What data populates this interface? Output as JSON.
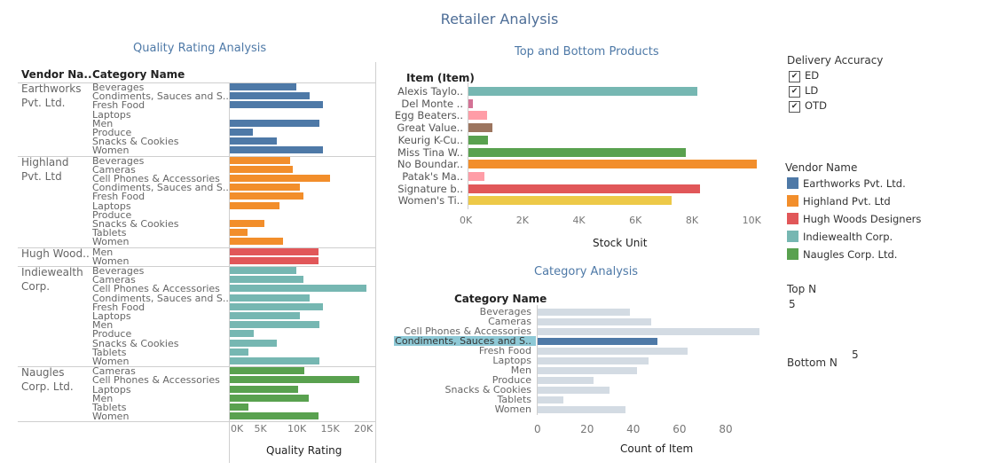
{
  "dashboard_title": "Retailer Analysis",
  "colors": {
    "Earthworks Pvt. Ltd.": "#4e79a7",
    "Highland Pvt. Ltd": "#f28e2b",
    "Hugh Woods Designers": "#e15759",
    "Indiewealth Corp.": "#76b7b2",
    "Naugles Corp. Ltd.": "#59a14f",
    "muted": "#d3dbe3",
    "highlight": "#4e79a7"
  },
  "quality": {
    "title": "Quality Rating Analysis",
    "vendor_header": "Vendor Na..",
    "category_header": "Category Name",
    "axis_title": "Quality Rating",
    "ticks": [
      "0K",
      "5K",
      "10K",
      "15K",
      "20K"
    ],
    "vendors": [
      {
        "label": "Earthworks Pvt. Ltd.",
        "lines": [
          "Earthworks",
          "Pvt. Ltd."
        ],
        "key": "Earthworks Pvt. Ltd.",
        "rows": [
          [
            "Beverages",
            10000
          ],
          [
            "Condiments, Sauces and S..",
            12000
          ],
          [
            "Fresh Food",
            14000
          ],
          [
            "Laptops",
            0
          ],
          [
            "Men",
            13500
          ],
          [
            "Produce",
            3500
          ],
          [
            "Snacks & Cookies",
            7000
          ],
          [
            "Women",
            14000
          ]
        ]
      },
      {
        "label": "Highland Pvt. Ltd",
        "lines": [
          "Highland",
          "Pvt. Ltd"
        ],
        "key": "Highland Pvt. Ltd",
        "rows": [
          [
            "Beverages",
            9000
          ],
          [
            "Cameras",
            9500
          ],
          [
            "Cell Phones & Accessories",
            15000
          ],
          [
            "Condiments, Sauces and S..",
            10500
          ],
          [
            "Fresh Food",
            11000
          ],
          [
            "Laptops",
            7500
          ],
          [
            "Produce",
            0
          ],
          [
            "Snacks & Cookies",
            5200
          ],
          [
            "Tablets",
            2700
          ],
          [
            "Women",
            8000
          ]
        ]
      },
      {
        "label": "Hugh Wood..",
        "lines": [
          "Hugh Wood.."
        ],
        "key": "Hugh Woods Designers",
        "rows": [
          [
            "Men",
            13300
          ],
          [
            "Women",
            13300
          ]
        ]
      },
      {
        "label": "Indiewealth Corp.",
        "lines": [
          "Indiewealth",
          "Corp."
        ],
        "key": "Indiewealth Corp.",
        "rows": [
          [
            "Beverages",
            10000
          ],
          [
            "Cameras",
            11000
          ],
          [
            "Cell Phones & Accessories",
            20500
          ],
          [
            "Condiments, Sauces and S..",
            12000
          ],
          [
            "Fresh Food",
            14000
          ],
          [
            "Laptops",
            10500
          ],
          [
            "Men",
            13500
          ],
          [
            "Produce",
            3600
          ],
          [
            "Snacks & Cookies",
            7000
          ],
          [
            "Tablets",
            2800
          ],
          [
            "Women",
            13500
          ]
        ]
      },
      {
        "label": "Naugles Corp. Ltd.",
        "lines": [
          "Naugles",
          "Corp. Ltd."
        ],
        "key": "Naugles Corp. Ltd.",
        "rows": [
          [
            "Cameras",
            11200
          ],
          [
            "Cell Phones & Accessories",
            19500
          ],
          [
            "Laptops",
            10200
          ],
          [
            "Men",
            11800
          ],
          [
            "Tablets",
            2800
          ],
          [
            "Women",
            13300
          ]
        ]
      }
    ]
  },
  "top_bottom": {
    "title": "Top and Bottom Products",
    "header": "Item (Item)",
    "axis_title": "Stock Unit",
    "ticks": [
      "0K",
      "2K",
      "4K",
      "6K",
      "8K",
      "10K"
    ],
    "items": [
      {
        "label": "Alexis Taylo..",
        "value": 8100,
        "color": "#76b7b2"
      },
      {
        "label": "Del Monte ..",
        "value": 150,
        "color": "#d37295"
      },
      {
        "label": "Egg Beaters..",
        "value": 650,
        "color": "#ff9da7"
      },
      {
        "label": "Great Value..",
        "value": 850,
        "color": "#9c755f"
      },
      {
        "label": "Keurig K-Cu..",
        "value": 700,
        "color": "#59a14f"
      },
      {
        "label": "Miss Tina W..",
        "value": 7700,
        "color": "#59a14f"
      },
      {
        "label": "No Boundar..",
        "value": 10200,
        "color": "#f28e2b"
      },
      {
        "label": "Patak's Ma..",
        "value": 550,
        "color": "#ff9da7"
      },
      {
        "label": "Signature b..",
        "value": 8200,
        "color": "#e15759"
      },
      {
        "label": "Women's Ti..",
        "value": 7200,
        "color": "#edc948"
      }
    ]
  },
  "category": {
    "title": "Category Analysis",
    "header": "Category Name",
    "axis_title": "Count of Item",
    "ticks": [
      "0",
      "20",
      "40",
      "60",
      "80"
    ],
    "highlighted": "Condiments, Sauces and S..",
    "items": [
      {
        "label": "Beverages",
        "value": 40
      },
      {
        "label": "Cameras",
        "value": 49
      },
      {
        "label": "Cell Phones & Accessories",
        "value": 96
      },
      {
        "label": "Condiments, Sauces and S..",
        "value": 52
      },
      {
        "label": "Fresh Food",
        "value": 65
      },
      {
        "label": "Laptops",
        "value": 48
      },
      {
        "label": "Men",
        "value": 43
      },
      {
        "label": "Produce",
        "value": 24
      },
      {
        "label": "Snacks & Cookies",
        "value": 31
      },
      {
        "label": "Tablets",
        "value": 11
      },
      {
        "label": "Women",
        "value": 38
      }
    ]
  },
  "filters": {
    "delivery_title": "Delivery Accuracy",
    "delivery_options": [
      {
        "label": "ED",
        "checked": true
      },
      {
        "label": "LD",
        "checked": true
      },
      {
        "label": "OTD",
        "checked": true
      }
    ],
    "vendor_title": "Vendor Name",
    "vendors": [
      "Earthworks Pvt. Ltd.",
      "Highland Pvt. Ltd",
      "Hugh Woods Designers",
      "Indiewealth Corp.",
      "Naugles Corp. Ltd."
    ],
    "top_n_label": "Top N",
    "top_n_value": "5",
    "bottom_n_label": "Bottom N",
    "bottom_n_value": "5"
  }
}
